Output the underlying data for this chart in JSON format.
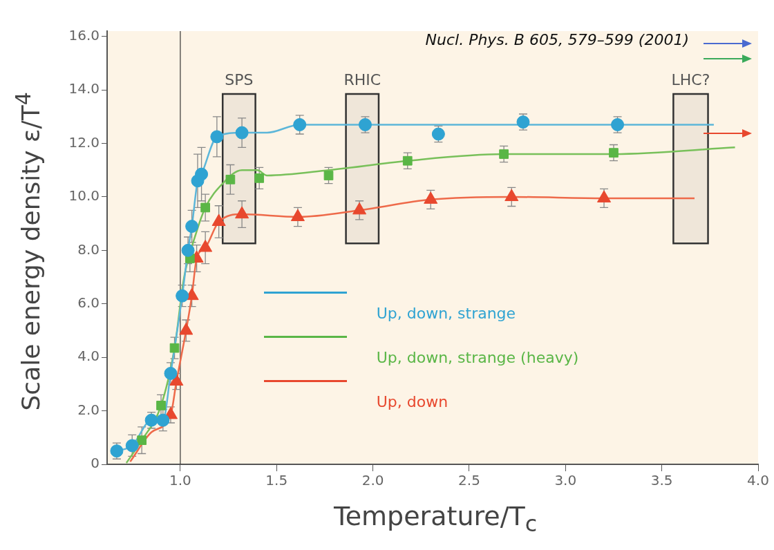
{
  "chart_data": {
    "type": "scatter",
    "xlabel": "Temperature/T$_{c}$",
    "ylabel": "Scale energy density ε/T$^{4}$",
    "xlim": [
      0.62,
      4.0
    ],
    "ylim": [
      0,
      16.2
    ],
    "xticks": [
      {
        "value": 1,
        "label": "1.0"
      },
      {
        "value": 1.5,
        "label": "1.5"
      },
      {
        "value": 2,
        "label": "2.0"
      },
      {
        "value": 2.5,
        "label": "2.5"
      },
      {
        "value": 3,
        "label": "3.0"
      },
      {
        "value": 3.5,
        "label": "3.5"
      },
      {
        "value": 4,
        "label": "4.0"
      }
    ],
    "yticks": [
      0,
      {
        "value": 2,
        "label": "2.0"
      },
      {
        "value": 4,
        "label": "4.0"
      },
      {
        "value": 6,
        "label": "6.0"
      },
      {
        "value": 8,
        "label": "8.0"
      },
      {
        "value": 10,
        "label": "10.0"
      },
      {
        "value": 12,
        "label": "12.0"
      },
      {
        "value": 14,
        "label": "14.0"
      },
      {
        "value": 16,
        "label": "16.0"
      }
    ],
    "grid": false,
    "legend": "center",
    "line_style": "solid",
    "series": [
      {
        "name": "Up, down, strange",
        "marker": "circle",
        "color": "#2fa3d2",
        "x": [
          0.67,
          0.75,
          0.85,
          0.91,
          0.95,
          1.01,
          1.04,
          1.06,
          1.09,
          1.11,
          1.19,
          1.32,
          1.62,
          1.96,
          2.34,
          2.78,
          3.27
        ],
        "values": [
          0.5,
          0.7,
          1.65,
          1.65,
          3.4,
          6.3,
          8.0,
          8.9,
          10.6,
          10.85,
          12.25,
          12.4,
          12.7,
          12.7,
          12.35,
          12.8,
          12.7
        ],
        "errors": [
          0.3,
          0.4,
          0.3,
          0.4,
          0.4,
          0.4,
          0.5,
          0.6,
          1.0,
          1.0,
          0.75,
          0.55,
          0.35,
          0.3,
          0.3,
          0.3,
          0.3
        ]
      },
      {
        "name": "Up, down, strange (heavy)",
        "marker": "square",
        "color": "#5ab646",
        "x": [
          0.8,
          0.9,
          0.97,
          1.05,
          1.13,
          1.26,
          1.41,
          1.77,
          2.18,
          2.68,
          3.25
        ],
        "values": [
          0.9,
          2.2,
          4.35,
          7.7,
          9.6,
          10.65,
          10.7,
          10.8,
          11.35,
          11.6,
          11.65
        ],
        "errors": [
          0.5,
          0.4,
          0.4,
          0.5,
          0.5,
          0.55,
          0.4,
          0.3,
          0.3,
          0.3,
          0.3
        ]
      },
      {
        "name": "Up, down",
        "marker": "triangle",
        "color": "#e8482e",
        "x": [
          0.95,
          0.98,
          1.03,
          1.06,
          1.085,
          1.13,
          1.2,
          1.32,
          1.61,
          1.93,
          2.3,
          2.72,
          3.2
        ],
        "values": [
          1.85,
          3.1,
          5.0,
          6.3,
          7.7,
          8.1,
          9.07,
          9.35,
          9.25,
          9.5,
          9.9,
          10.0,
          9.95
        ],
        "errors": [
          0.3,
          0.3,
          0.4,
          0.4,
          0.5,
          0.6,
          0.6,
          0.5,
          0.35,
          0.35,
          0.35,
          0.35,
          0.35
        ]
      },
      {
        "type": "line",
        "marker": "none",
        "color": "#5cb6d9",
        "x": [
          0.67,
          0.75,
          0.85,
          0.91,
          0.95,
          1.01,
          1.04,
          1.06,
          1.09,
          1.11,
          1.19,
          1.32,
          1.45,
          1.62,
          3.77
        ],
        "values": [
          0.5,
          0.7,
          1.65,
          1.65,
          3.4,
          6.3,
          8.0,
          8.9,
          10.6,
          10.85,
          12.25,
          12.4,
          12.4,
          12.7,
          12.7
        ]
      },
      {
        "type": "line",
        "marker": "none",
        "color": "#78c05a",
        "x": [
          0.72,
          0.8,
          0.9,
          0.97,
          1.02,
          1.08,
          1.13,
          1.22,
          1.32,
          1.4,
          1.45,
          1.77,
          2.18,
          2.68,
          3.25,
          3.88
        ],
        "values": [
          0.05,
          0.9,
          2.2,
          4.35,
          7.0,
          8.6,
          9.6,
          10.5,
          11.0,
          11.0,
          10.8,
          11.0,
          11.35,
          11.6,
          11.6,
          11.85
        ]
      },
      {
        "type": "line",
        "marker": "none",
        "color": "#ee6a4a",
        "x": [
          0.74,
          0.85,
          0.95,
          0.98,
          1.03,
          1.06,
          1.085,
          1.13,
          1.2,
          1.32,
          1.61,
          1.93,
          2.3,
          2.72,
          3.2,
          3.67
        ],
        "values": [
          0.1,
          1.2,
          1.85,
          3.1,
          5.0,
          6.3,
          7.7,
          8.1,
          9.07,
          9.35,
          9.25,
          9.5,
          9.9,
          10.0,
          9.95,
          9.95
        ]
      }
    ],
    "ref_lines": [
      {
        "axis": "x",
        "value": 1.0,
        "color": "#333333"
      }
    ],
    "bands": [
      {
        "axis": "x",
        "from": 1.22,
        "to": 1.39,
        "label": "SPS",
        "color": "#333333"
      },
      {
        "axis": "x",
        "from": 1.86,
        "to": 2.03,
        "label": "RHIC",
        "color": "#333333"
      },
      {
        "axis": "x",
        "from": 3.56,
        "to": 3.74,
        "label": "LHC?",
        "color": "#333333"
      }
    ],
    "annotations": [
      "Nucl. Phys. B 605, 579–599 (2001)"
    ]
  }
}
